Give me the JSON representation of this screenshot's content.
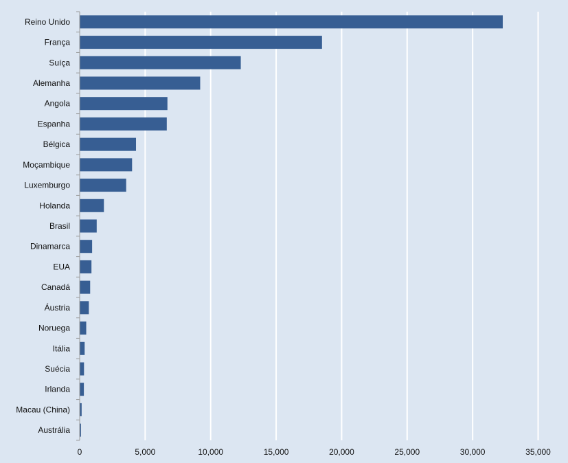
{
  "chart_data": {
    "type": "bar",
    "orientation": "horizontal",
    "categories": [
      "Reino Unido",
      "França",
      "Suíça",
      "Alemanha",
      "Angola",
      "Espanha",
      "Bélgica",
      "Moçambique",
      "Luxemburgo",
      "Holanda",
      "Brasil",
      "Dinamarca",
      "EUA",
      "Canadá",
      "Áustria",
      "Noruega",
      "Itália",
      "Suécia",
      "Irlanda",
      "Macau (China)",
      "Austrália"
    ],
    "values": [
      32300,
      18500,
      12300,
      9200,
      6700,
      6650,
      4300,
      4000,
      3550,
      1850,
      1300,
      950,
      900,
      800,
      700,
      500,
      380,
      330,
      320,
      150,
      100
    ],
    "xlim": [
      0,
      35000
    ],
    "x_ticks": [
      "0",
      "5,000",
      "10,000",
      "15,000",
      "20,000",
      "25,000",
      "30,000",
      "35,000"
    ],
    "x_tick_values": [
      0,
      5000,
      10000,
      15000,
      20000,
      25000,
      30000,
      35000
    ],
    "grid": "vertical",
    "legend": "none",
    "colors": {
      "bar": "#375e93",
      "background": "#dce6f2",
      "grid": "#ffffff",
      "axis": "#9a9a9a"
    }
  }
}
